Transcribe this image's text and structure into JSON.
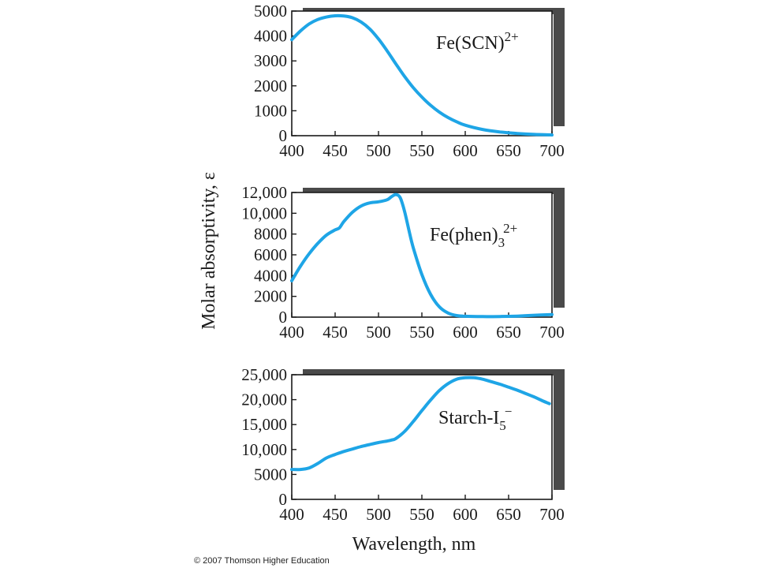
{
  "figure": {
    "ylabel": "Molar absorptivity, ε",
    "xlabel": "Wavelength, nm",
    "copyright": "© 2007 Thomson Higher Education",
    "line_color": "#1ea5e6",
    "shadow_color": "#4a4a4a"
  },
  "chart_data": [
    {
      "type": "line",
      "series_label": "Fe(SCN)",
      "superscript": "2+",
      "subscript": "",
      "xlim": [
        400,
        700
      ],
      "ylim": [
        0,
        5000
      ],
      "xticks": [
        400,
        450,
        500,
        550,
        600,
        650,
        700
      ],
      "xtick_labels": [
        "400",
        "450",
        "500",
        "550",
        "600",
        "650",
        "700"
      ],
      "yticks": [
        0,
        1000,
        2000,
        3000,
        4000,
        5000
      ],
      "ytick_labels": [
        "0",
        "1000",
        "2000",
        "3000",
        "4000",
        "5000"
      ],
      "grid": false,
      "x": [
        400,
        410,
        420,
        430,
        440,
        450,
        460,
        470,
        480,
        490,
        500,
        510,
        520,
        530,
        540,
        550,
        560,
        570,
        580,
        590,
        600,
        620,
        640,
        660,
        680,
        700
      ],
      "y": [
        3850,
        4200,
        4480,
        4660,
        4760,
        4810,
        4800,
        4730,
        4560,
        4280,
        3880,
        3400,
        2880,
        2380,
        1930,
        1550,
        1220,
        950,
        730,
        560,
        420,
        250,
        150,
        90,
        50,
        30
      ]
    },
    {
      "type": "line",
      "series_label": "Fe(phen)",
      "superscript": "2+",
      "subscript": "3",
      "xlim": [
        400,
        700
      ],
      "ylim": [
        0,
        12000
      ],
      "xticks": [
        400,
        450,
        500,
        550,
        600,
        650,
        700
      ],
      "xtick_labels": [
        "400",
        "450",
        "500",
        "550",
        "600",
        "650",
        "700"
      ],
      "yticks": [
        0,
        2000,
        4000,
        6000,
        8000,
        10000,
        12000
      ],
      "ytick_labels": [
        "0",
        "2000",
        "4000",
        "6000",
        "8000",
        "10,000",
        "12,000"
      ],
      "grid": false,
      "x": [
        400,
        410,
        420,
        430,
        440,
        450,
        455,
        460,
        470,
        480,
        490,
        500,
        510,
        515,
        520,
        525,
        530,
        535,
        540,
        550,
        560,
        570,
        580,
        590,
        600,
        620,
        640,
        660,
        680,
        700
      ],
      "y": [
        3500,
        4900,
        6100,
        7100,
        7900,
        8400,
        8600,
        9200,
        10100,
        10700,
        11000,
        11100,
        11300,
        11600,
        11800,
        11500,
        10200,
        8400,
        6700,
        4100,
        2200,
        1000,
        400,
        150,
        80,
        50,
        60,
        100,
        180,
        250
      ]
    },
    {
      "type": "line",
      "series_label": "Starch-I",
      "superscript": "−",
      "subscript": "5",
      "xlim": [
        400,
        700
      ],
      "ylim": [
        0,
        25000
      ],
      "xticks": [
        400,
        450,
        500,
        550,
        600,
        650,
        700
      ],
      "xtick_labels": [
        "400",
        "450",
        "500",
        "550",
        "600",
        "650",
        "700"
      ],
      "yticks": [
        0,
        5000,
        10000,
        15000,
        20000,
        25000
      ],
      "ytick_labels": [
        "0",
        "5000",
        "10,000",
        "15,000",
        "20,000",
        "25,000"
      ],
      "grid": false,
      "x": [
        400,
        410,
        420,
        430,
        440,
        450,
        460,
        470,
        480,
        490,
        500,
        510,
        515,
        520,
        530,
        540,
        550,
        560,
        570,
        580,
        590,
        600,
        610,
        620,
        630,
        640,
        650,
        660,
        670,
        680,
        690,
        697
      ],
      "y": [
        6000,
        6000,
        6300,
        7200,
        8300,
        9000,
        9600,
        10100,
        10600,
        11000,
        11400,
        11700,
        11900,
        12200,
        13600,
        15600,
        17800,
        19900,
        21800,
        23200,
        24100,
        24400,
        24400,
        24100,
        23600,
        23100,
        22500,
        21900,
        21200,
        20500,
        19700,
        19200
      ]
    }
  ]
}
